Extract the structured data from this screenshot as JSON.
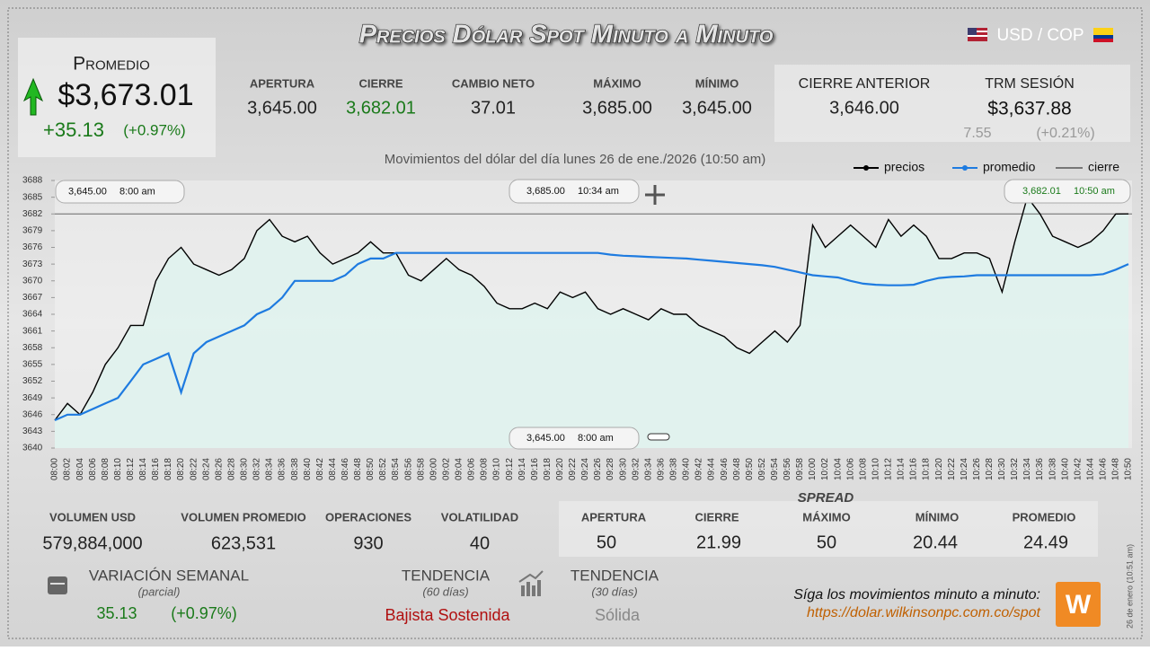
{
  "title": "Precios Dólar Spot Minuto a Minuto",
  "pair": "USD / COP",
  "promedio": {
    "label": "Promedio",
    "value": "$3,673.01",
    "change": "+35.13",
    "change_pct": "(+0.97%)"
  },
  "stats": [
    {
      "label": "APERTURA",
      "value": "3,645.00"
    },
    {
      "label": "CIERRE",
      "value": "3,682.01"
    },
    {
      "label": "CAMBIO NETO",
      "value": "37.01"
    },
    {
      "label": "MÁXIMO",
      "value": "3,685.00"
    },
    {
      "label": "MÍNIMO",
      "value": "3,645.00"
    }
  ],
  "cierre_anterior": {
    "label": "CIERRE ANTERIOR",
    "value": "3,646.00"
  },
  "trm": {
    "label": "TRM SESIÓN",
    "value": "$3,637.88",
    "change": "7.55",
    "change_pct": "(+0.21%)"
  },
  "chart_data": {
    "type": "line",
    "subtitle": "Movimientos del dólar del día lunes 26 de ene./2026 (10:50 am)",
    "categories": [
      "08:00",
      "08:02",
      "08:04",
      "08:06",
      "08:08",
      "08:10",
      "08:12",
      "08:14",
      "08:16",
      "08:18",
      "08:20",
      "08:22",
      "08:24",
      "08:26",
      "08:28",
      "08:30",
      "08:32",
      "08:34",
      "08:36",
      "08:38",
      "08:40",
      "08:42",
      "08:44",
      "08:46",
      "08:48",
      "08:50",
      "08:52",
      "08:54",
      "08:56",
      "08:58",
      "09:00",
      "09:02",
      "09:04",
      "09:06",
      "09:08",
      "09:10",
      "09:12",
      "09:14",
      "09:16",
      "09:18",
      "09:20",
      "09:22",
      "09:24",
      "09:26",
      "09:28",
      "09:30",
      "09:32",
      "09:34",
      "09:36",
      "09:38",
      "09:40",
      "09:42",
      "09:44",
      "09:46",
      "09:48",
      "09:50",
      "09:52",
      "09:54",
      "09:56",
      "09:58",
      "10:00",
      "10:02",
      "10:04",
      "10:06",
      "10:08",
      "10:10",
      "10:12",
      "10:14",
      "10:16",
      "10:18",
      "10:20",
      "10:22",
      "10:24",
      "10:26",
      "10:28",
      "10:30",
      "10:32",
      "10:34",
      "10:36",
      "10:38",
      "10:40",
      "10:42",
      "10:44",
      "10:46",
      "10:48",
      "10:50"
    ],
    "series": [
      {
        "name": "precios",
        "color": "#000000",
        "values": [
          3645,
          3648,
          3646,
          3650,
          3655,
          3658,
          3662,
          3662,
          3670,
          3674,
          3676,
          3673,
          3672,
          3671,
          3672,
          3674,
          3679,
          3681,
          3678,
          3677,
          3678,
          3675,
          3673,
          3674,
          3675,
          3677,
          3675,
          3675,
          3671,
          3670,
          3672,
          3674,
          3672,
          3671,
          3669,
          3666,
          3665,
          3665,
          3666,
          3665,
          3668,
          3667,
          3668,
          3665,
          3664,
          3665,
          3664,
          3663,
          3665,
          3664,
          3664,
          3662,
          3661,
          3660,
          3658,
          3657,
          3659,
          3661,
          3659,
          3662,
          3680,
          3676,
          3678,
          3680,
          3678,
          3676,
          3681,
          3678,
          3680,
          3678,
          3674,
          3674,
          3675,
          3675,
          3674,
          3668,
          3677,
          3685,
          3682,
          3678,
          3677,
          3676,
          3677,
          3679,
          3682,
          3682.01
        ]
      },
      {
        "name": "promedio",
        "color": "#1e7be0",
        "values": [
          3645,
          3646,
          3646,
          3647,
          3648,
          3649,
          3652,
          3655,
          3656,
          3657,
          3650,
          3657,
          3659,
          3660,
          3661,
          3662,
          3664,
          3665,
          3667,
          3670,
          3670,
          3670,
          3670,
          3671,
          3673,
          3674,
          3674,
          3675,
          3675,
          3675,
          3675,
          3675,
          3675,
          3675,
          3675,
          3675,
          3675,
          3675,
          3675,
          3675,
          3675,
          3675,
          3675,
          3675,
          3674.7,
          3674.5,
          3674.4,
          3674.3,
          3674.2,
          3674.1,
          3674,
          3673.8,
          3673.6,
          3673.4,
          3673.2,
          3673,
          3672.8,
          3672.5,
          3672,
          3671.5,
          3671,
          3670.8,
          3670.6,
          3670,
          3669.5,
          3669.3,
          3669.2,
          3669.2,
          3669.3,
          3670,
          3670.5,
          3670.7,
          3670.8,
          3671,
          3671,
          3671,
          3671,
          3671,
          3671,
          3671,
          3671,
          3671,
          3671,
          3671.2,
          3672,
          3673.01
        ]
      }
    ],
    "cierre": {
      "name": "cierre",
      "value": 3682.01,
      "color": "#555555"
    },
    "annotations": [
      {
        "price": "3,645.00",
        "time": "8:00 am"
      },
      {
        "price": "3,685.00",
        "time": "10:34 am"
      },
      {
        "price": "3,682.01",
        "time": "10:50 am"
      },
      {
        "price": "3,645.00",
        "time": "8:00 am"
      }
    ],
    "ylim": [
      3640,
      3688
    ],
    "yticks": [
      3640,
      3643,
      3646,
      3649,
      3652,
      3655,
      3658,
      3661,
      3664,
      3667,
      3670,
      3673,
      3676,
      3679,
      3682,
      3685,
      3688
    ],
    "fill": "#dff3ee"
  },
  "bottom_stats": [
    {
      "label": "VOLUMEN USD",
      "value": "579,884,000"
    },
    {
      "label": "VOLUMEN PROMEDIO",
      "value": "623,531"
    },
    {
      "label": "OPERACIONES",
      "value": "930"
    },
    {
      "label": "VOLATILIDAD",
      "value": "40"
    }
  ],
  "spread": {
    "title": "SPREAD",
    "items": [
      {
        "label": "APERTURA",
        "value": "50"
      },
      {
        "label": "CIERRE",
        "value": "21.99"
      },
      {
        "label": "MÁXIMO",
        "value": "50"
      },
      {
        "label": "MÍNIMO",
        "value": "20.44"
      },
      {
        "label": "PROMEDIO",
        "value": "24.49"
      }
    ]
  },
  "variacion": {
    "label": "VARIACIÓN SEMANAL",
    "note": "(parcial)",
    "value": "35.13",
    "pct": "(+0.97%)"
  },
  "tendencia60": {
    "label": "TENDENCIA",
    "note": "(60 días)",
    "value": "Bajista Sostenida"
  },
  "tendencia30": {
    "label": "TENDENCIA",
    "note": "(30 días)",
    "value": "Sólida"
  },
  "footer": {
    "text": "Síga los movimientos minuto a minuto:",
    "url": "https://dolar.wilkinsonpc.com.co/spot",
    "logo": "W"
  },
  "timestamp": "26 de enero (10:51 am)"
}
